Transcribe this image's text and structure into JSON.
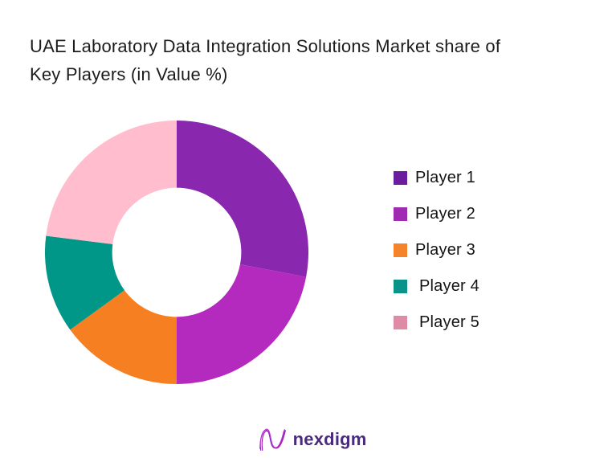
{
  "page": {
    "background": "#ffffff",
    "title": "UAE Laboratory Data Integration Solutions Market share of Key Players (in Value %)"
  },
  "chart_data": {
    "type": "pie",
    "variant": "donut",
    "title": "UAE Laboratory Data Integration Solutions Market share of Key Players (in Value %)",
    "categories": [
      "Player 1",
      "Player 2",
      "Player 3",
      "Player 4",
      "Player 5"
    ],
    "values": [
      28,
      22,
      15,
      12,
      23
    ],
    "unit": "percent",
    "start_angle": "top",
    "direction": "clockwise",
    "inner_radius_ratio": 0.49,
    "segment_colors": [
      "#8927ae",
      "#b52abe",
      "#f57f21",
      "#009688",
      "#ffbdcd"
    ],
    "legend": {
      "position": "right",
      "swatch_colors": [
        "#6a1e9e",
        "#9f2bb3",
        "#f5832c",
        "#0a9389",
        "#df8ba5"
      ]
    }
  },
  "footer": {
    "brand": "nexdigm",
    "brand_color": "#4a2a7b"
  }
}
